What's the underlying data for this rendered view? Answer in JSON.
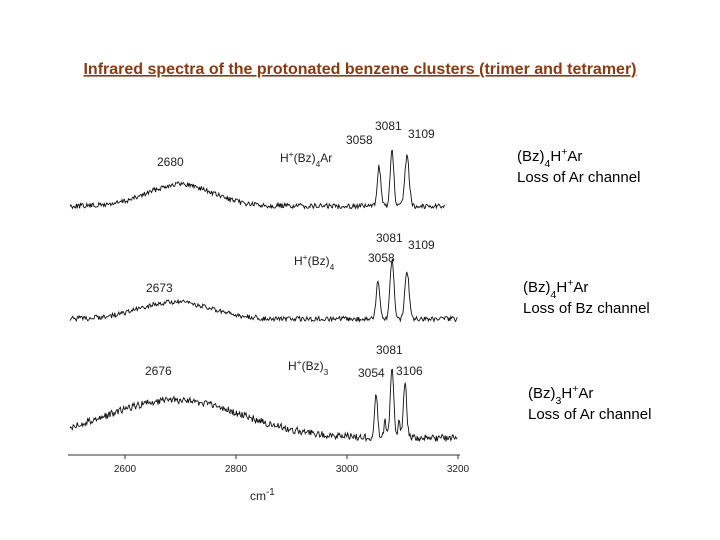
{
  "title": "Infrared spectra of the protonated benzene clusters (trimer and tetramer)",
  "figure": {
    "axis": {
      "ticks": [
        "2600",
        "2800",
        "3000",
        "3200"
      ],
      "unit": [
        {
          "t": "cm"
        },
        {
          "sup": "-1"
        }
      ]
    },
    "labels": [
      {
        "parts": [
          {
            "t": "2680"
          }
        ]
      },
      {
        "parts": [
          {
            "t": "H"
          },
          {
            "sup": "+"
          },
          {
            "t": "(Bz)"
          },
          {
            "sub": "4"
          },
          {
            "t": "Ar"
          }
        ]
      },
      {
        "parts": [
          {
            "t": "3058"
          }
        ]
      },
      {
        "parts": [
          {
            "t": "3081"
          }
        ]
      },
      {
        "parts": [
          {
            "t": "3109"
          }
        ]
      },
      {
        "parts": [
          {
            "t": "3081"
          }
        ]
      },
      {
        "parts": [
          {
            "t": "3109"
          }
        ]
      },
      {
        "parts": [
          {
            "t": "H"
          },
          {
            "sup": "+"
          },
          {
            "t": "(Bz)"
          },
          {
            "sub": "4"
          }
        ]
      },
      {
        "parts": [
          {
            "t": "3058"
          }
        ]
      },
      {
        "parts": [
          {
            "t": "2673"
          }
        ]
      },
      {
        "parts": [
          {
            "t": "3081"
          }
        ]
      },
      {
        "parts": [
          {
            "t": "H"
          },
          {
            "sup": "+"
          },
          {
            "t": "(Bz)"
          },
          {
            "sub": "3"
          }
        ]
      },
      {
        "parts": [
          {
            "t": "3054"
          }
        ]
      },
      {
        "parts": [
          {
            "t": "3106"
          }
        ]
      },
      {
        "parts": [
          {
            "t": "2676"
          }
        ]
      }
    ]
  },
  "side_labels": [
    {
      "species": [
        {
          "t": "(Bz)"
        },
        {
          "sub": "4"
        },
        {
          "t": "H"
        },
        {
          "sup": "+"
        },
        {
          "t": "Ar"
        }
      ],
      "channel": "Loss of Ar channel"
    },
    {
      "species": [
        {
          "t": "(Bz)"
        },
        {
          "sub": "4"
        },
        {
          "t": "H"
        },
        {
          "sup": "+"
        },
        {
          "t": "Ar"
        }
      ],
      "channel": "Loss of Bz channel"
    },
    {
      "species": [
        {
          "t": "(Bz)"
        },
        {
          "sub": "3"
        },
        {
          "t": "H"
        },
        {
          "sup": "+"
        },
        {
          "t": "Ar"
        }
      ],
      "channel": "Loss of Ar channel"
    }
  ]
}
